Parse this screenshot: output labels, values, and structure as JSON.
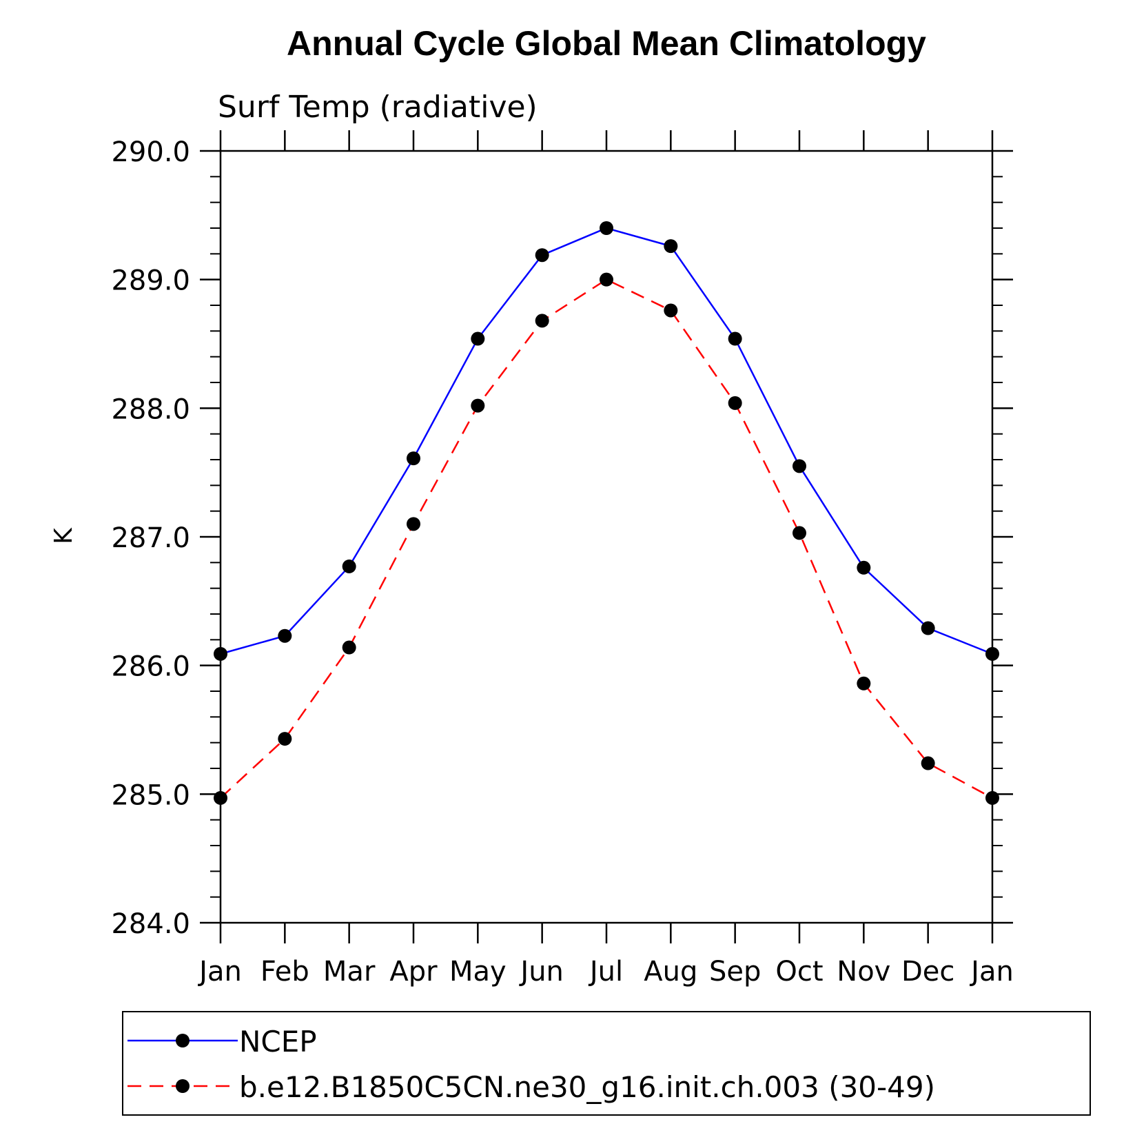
{
  "chart_data": {
    "type": "line",
    "title": "Annual Cycle Global Mean Climatology",
    "subtitle": "Surf Temp (radiative)",
    "ylabel": "K",
    "xlabel": "",
    "categories": [
      "Jan",
      "Feb",
      "Mar",
      "Apr",
      "May",
      "Jun",
      "Jul",
      "Aug",
      "Sep",
      "Oct",
      "Nov",
      "Dec",
      "Jan"
    ],
    "ylim": [
      284.0,
      290.0
    ],
    "yticks": [
      "284.0",
      "285.0",
      "286.0",
      "287.0",
      "288.0",
      "289.0",
      "290.0"
    ],
    "grid": false,
    "legend_position": "bottom",
    "series": [
      {
        "name": "NCEP",
        "color": "#0000ff",
        "style": "solid",
        "marker": "filled-circle",
        "values": [
          286.09,
          286.23,
          286.77,
          287.61,
          288.54,
          289.19,
          289.4,
          289.26,
          288.54,
          287.55,
          286.76,
          286.29,
          286.09
        ]
      },
      {
        "name": "b.e12.B1850C5CN.ne30_g16.init.ch.003 (30-49)",
        "color": "#ff0000",
        "style": "dashed",
        "marker": "filled-circle",
        "values": [
          284.97,
          285.43,
          286.14,
          287.1,
          288.02,
          288.68,
          289.0,
          288.76,
          288.04,
          287.03,
          285.86,
          285.24,
          284.97
        ]
      }
    ]
  }
}
